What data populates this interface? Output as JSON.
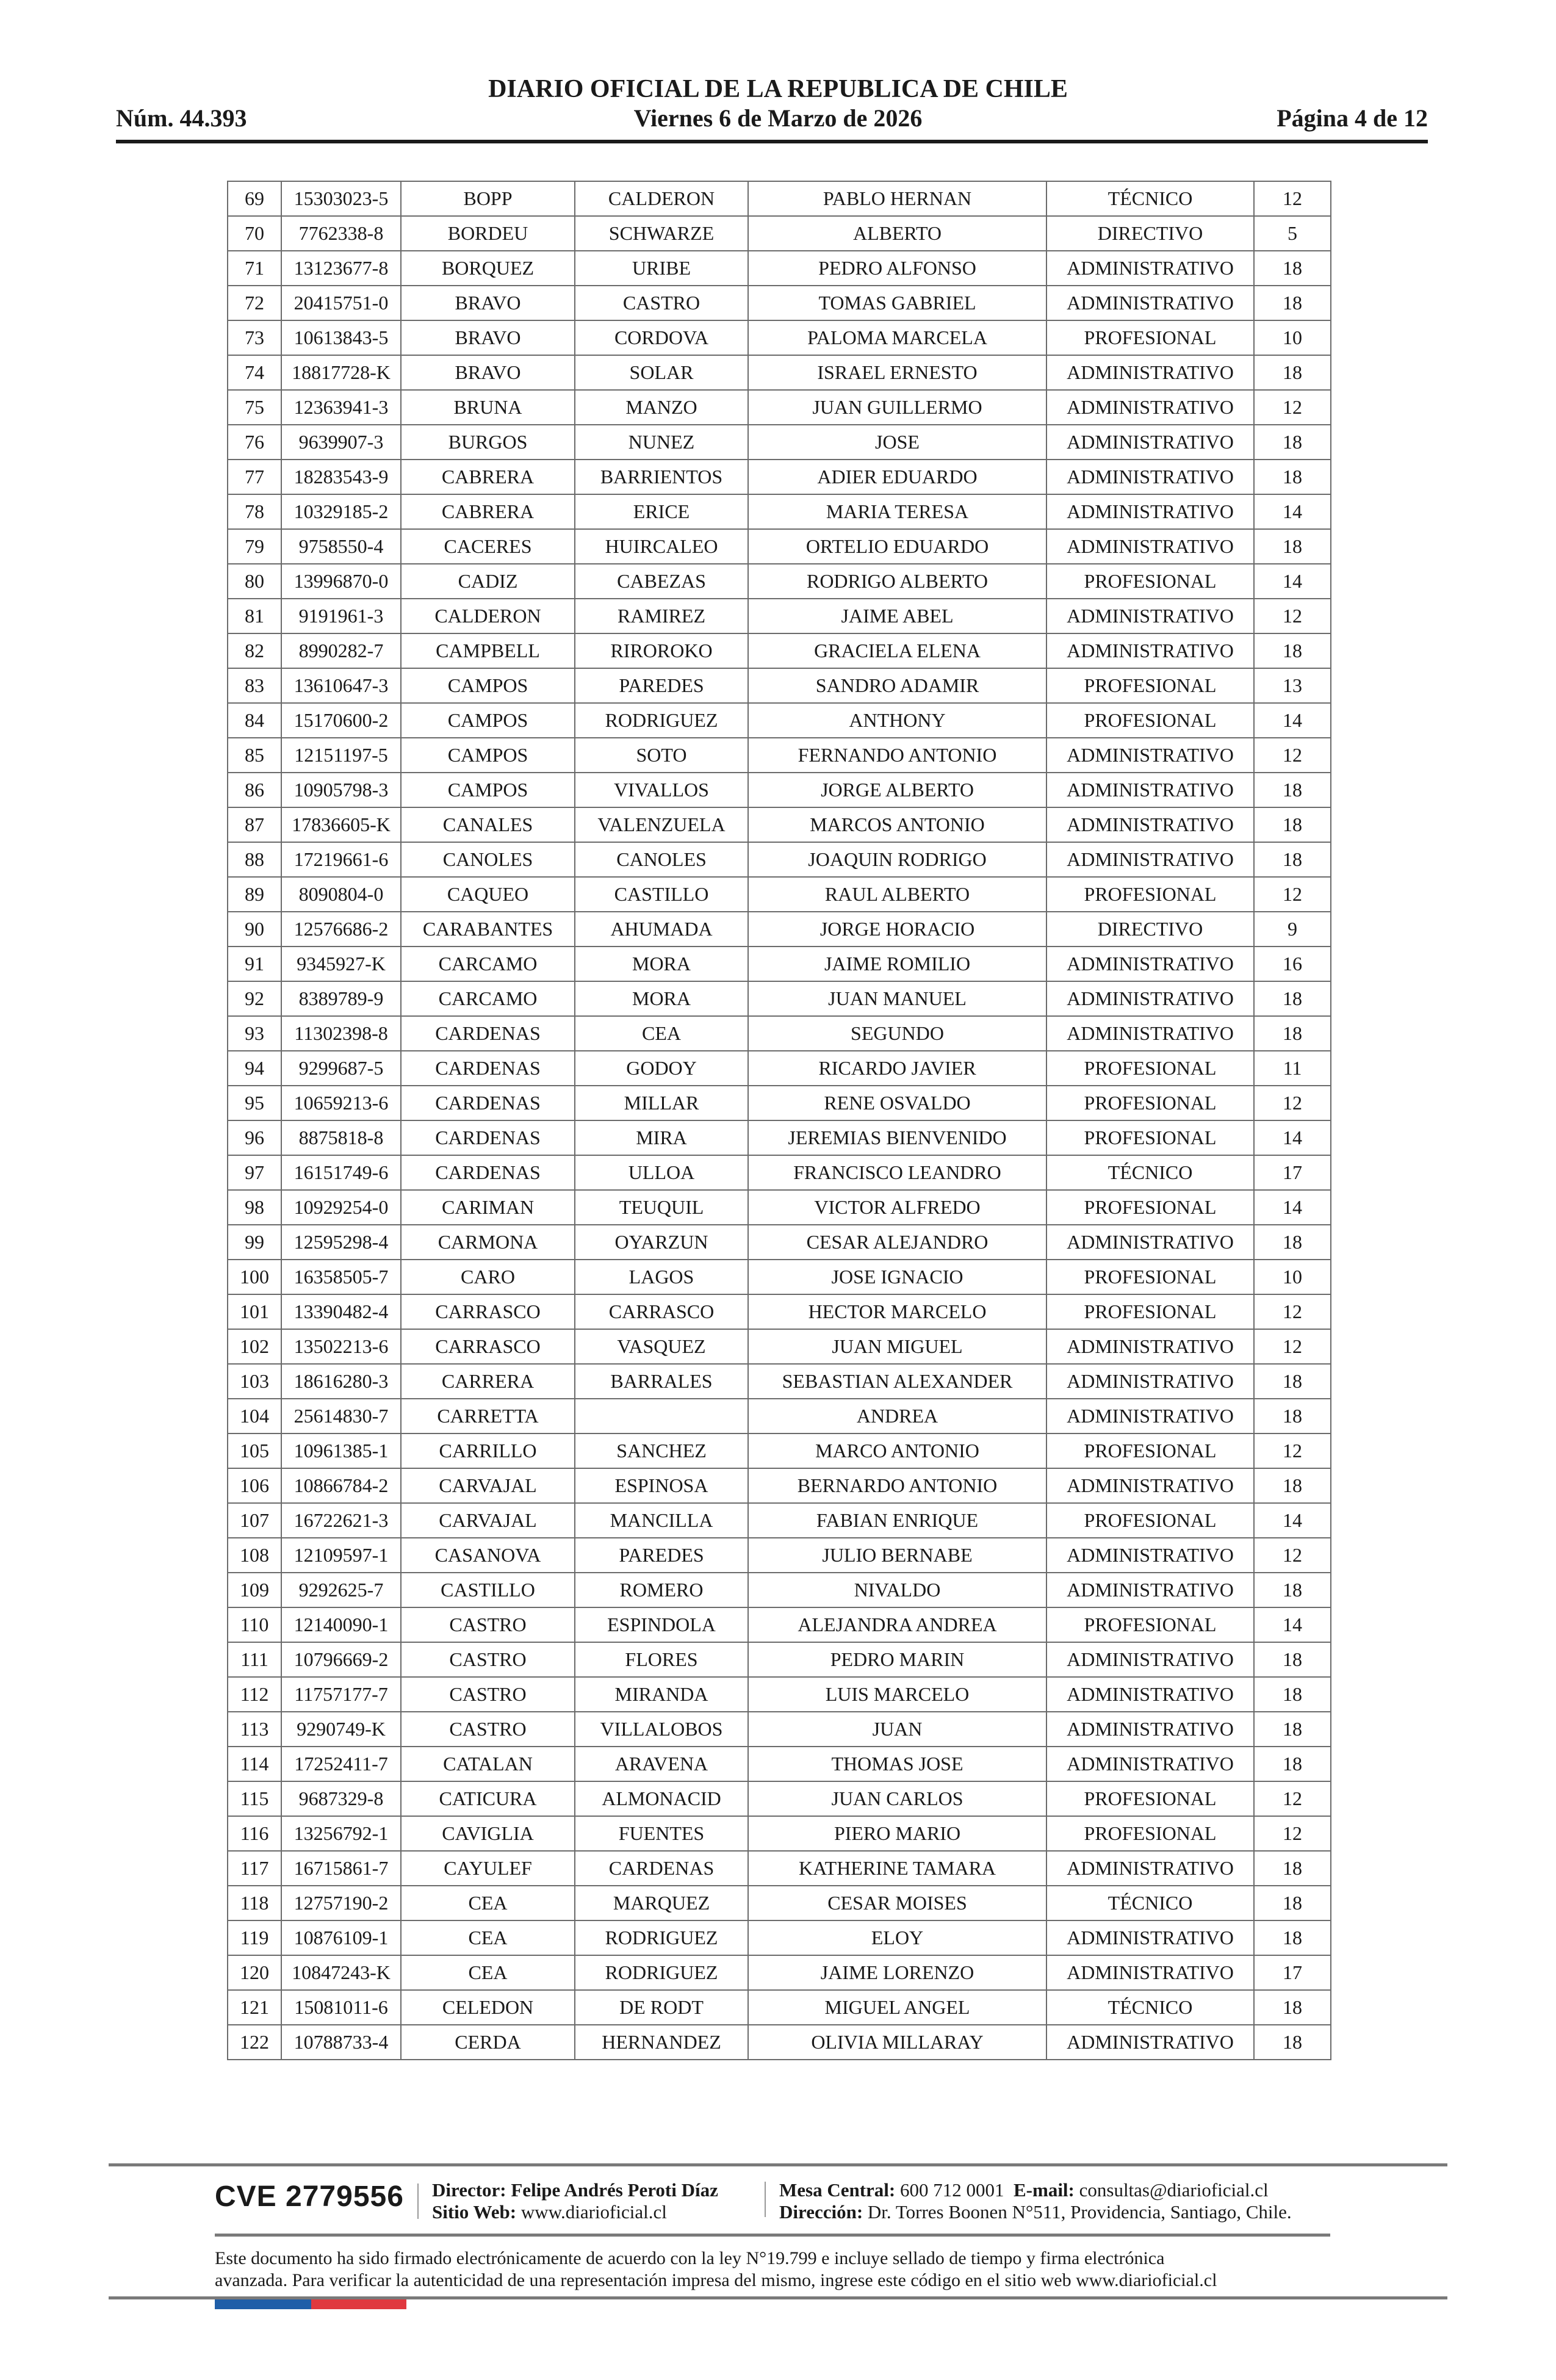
{
  "header": {
    "title": "DIARIO OFICIAL DE LA REPUBLICA DE CHILE",
    "number": "Núm. 44.393",
    "date": "Viernes 6 de Marzo de 2026",
    "page": "Página 4 de 12"
  },
  "table": {
    "rows": [
      [
        "69",
        "15303023-5",
        "BOPP",
        "CALDERON",
        "PABLO HERNAN",
        "TÉCNICO",
        "12"
      ],
      [
        "70",
        "7762338-8",
        "BORDEU",
        "SCHWARZE",
        "ALBERTO",
        "DIRECTIVO",
        "5"
      ],
      [
        "71",
        "13123677-8",
        "BORQUEZ",
        "URIBE",
        "PEDRO ALFONSO",
        "ADMINISTRATIVO",
        "18"
      ],
      [
        "72",
        "20415751-0",
        "BRAVO",
        "CASTRO",
        "TOMAS GABRIEL",
        "ADMINISTRATIVO",
        "18"
      ],
      [
        "73",
        "10613843-5",
        "BRAVO",
        "CORDOVA",
        "PALOMA MARCELA",
        "PROFESIONAL",
        "10"
      ],
      [
        "74",
        "18817728-K",
        "BRAVO",
        "SOLAR",
        "ISRAEL ERNESTO",
        "ADMINISTRATIVO",
        "18"
      ],
      [
        "75",
        "12363941-3",
        "BRUNA",
        "MANZO",
        "JUAN GUILLERMO",
        "ADMINISTRATIVO",
        "12"
      ],
      [
        "76",
        "9639907-3",
        "BURGOS",
        "NUNEZ",
        "JOSE",
        "ADMINISTRATIVO",
        "18"
      ],
      [
        "77",
        "18283543-9",
        "CABRERA",
        "BARRIENTOS",
        "ADIER EDUARDO",
        "ADMINISTRATIVO",
        "18"
      ],
      [
        "78",
        "10329185-2",
        "CABRERA",
        "ERICE",
        "MARIA TERESA",
        "ADMINISTRATIVO",
        "14"
      ],
      [
        "79",
        "9758550-4",
        "CACERES",
        "HUIRCALEO",
        "ORTELIO EDUARDO",
        "ADMINISTRATIVO",
        "18"
      ],
      [
        "80",
        "13996870-0",
        "CADIZ",
        "CABEZAS",
        "RODRIGO ALBERTO",
        "PROFESIONAL",
        "14"
      ],
      [
        "81",
        "9191961-3",
        "CALDERON",
        "RAMIREZ",
        "JAIME ABEL",
        "ADMINISTRATIVO",
        "12"
      ],
      [
        "82",
        "8990282-7",
        "CAMPBELL",
        "RIROROKO",
        "GRACIELA ELENA",
        "ADMINISTRATIVO",
        "18"
      ],
      [
        "83",
        "13610647-3",
        "CAMPOS",
        "PAREDES",
        "SANDRO ADAMIR",
        "PROFESIONAL",
        "13"
      ],
      [
        "84",
        "15170600-2",
        "CAMPOS",
        "RODRIGUEZ",
        "ANTHONY",
        "PROFESIONAL",
        "14"
      ],
      [
        "85",
        "12151197-5",
        "CAMPOS",
        "SOTO",
        "FERNANDO ANTONIO",
        "ADMINISTRATIVO",
        "12"
      ],
      [
        "86",
        "10905798-3",
        "CAMPOS",
        "VIVALLOS",
        "JORGE ALBERTO",
        "ADMINISTRATIVO",
        "18"
      ],
      [
        "87",
        "17836605-K",
        "CANALES",
        "VALENZUELA",
        "MARCOS ANTONIO",
        "ADMINISTRATIVO",
        "18"
      ],
      [
        "88",
        "17219661-6",
        "CANOLES",
        "CANOLES",
        "JOAQUIN RODRIGO",
        "ADMINISTRATIVO",
        "18"
      ],
      [
        "89",
        "8090804-0",
        "CAQUEO",
        "CASTILLO",
        "RAUL ALBERTO",
        "PROFESIONAL",
        "12"
      ],
      [
        "90",
        "12576686-2",
        "CARABANTES",
        "AHUMADA",
        "JORGE HORACIO",
        "DIRECTIVO",
        "9"
      ],
      [
        "91",
        "9345927-K",
        "CARCAMO",
        "MORA",
        "JAIME ROMILIO",
        "ADMINISTRATIVO",
        "16"
      ],
      [
        "92",
        "8389789-9",
        "CARCAMO",
        "MORA",
        "JUAN MANUEL",
        "ADMINISTRATIVO",
        "18"
      ],
      [
        "93",
        "11302398-8",
        "CARDENAS",
        "CEA",
        "SEGUNDO",
        "ADMINISTRATIVO",
        "18"
      ],
      [
        "94",
        "9299687-5",
        "CARDENAS",
        "GODOY",
        "RICARDO JAVIER",
        "PROFESIONAL",
        "11"
      ],
      [
        "95",
        "10659213-6",
        "CARDENAS",
        "MILLAR",
        "RENE OSVALDO",
        "PROFESIONAL",
        "12"
      ],
      [
        "96",
        "8875818-8",
        "CARDENAS",
        "MIRA",
        "JEREMIAS BIENVENIDO",
        "PROFESIONAL",
        "14"
      ],
      [
        "97",
        "16151749-6",
        "CARDENAS",
        "ULLOA",
        "FRANCISCO LEANDRO",
        "TÉCNICO",
        "17"
      ],
      [
        "98",
        "10929254-0",
        "CARIMAN",
        "TEUQUIL",
        "VICTOR ALFREDO",
        "PROFESIONAL",
        "14"
      ],
      [
        "99",
        "12595298-4",
        "CARMONA",
        "OYARZUN",
        "CESAR ALEJANDRO",
        "ADMINISTRATIVO",
        "18"
      ],
      [
        "100",
        "16358505-7",
        "CARO",
        "LAGOS",
        "JOSE IGNACIO",
        "PROFESIONAL",
        "10"
      ],
      [
        "101",
        "13390482-4",
        "CARRASCO",
        "CARRASCO",
        "HECTOR MARCELO",
        "PROFESIONAL",
        "12"
      ],
      [
        "102",
        "13502213-6",
        "CARRASCO",
        "VASQUEZ",
        "JUAN MIGUEL",
        "ADMINISTRATIVO",
        "12"
      ],
      [
        "103",
        "18616280-3",
        "CARRERA",
        "BARRALES",
        "SEBASTIAN ALEXANDER",
        "ADMINISTRATIVO",
        "18"
      ],
      [
        "104",
        "25614830-7",
        "CARRETTA",
        "",
        "ANDREA",
        "ADMINISTRATIVO",
        "18"
      ],
      [
        "105",
        "10961385-1",
        "CARRILLO",
        "SANCHEZ",
        "MARCO ANTONIO",
        "PROFESIONAL",
        "12"
      ],
      [
        "106",
        "10866784-2",
        "CARVAJAL",
        "ESPINOSA",
        "BERNARDO ANTONIO",
        "ADMINISTRATIVO",
        "18"
      ],
      [
        "107",
        "16722621-3",
        "CARVAJAL",
        "MANCILLA",
        "FABIAN ENRIQUE",
        "PROFESIONAL",
        "14"
      ],
      [
        "108",
        "12109597-1",
        "CASANOVA",
        "PAREDES",
        "JULIO BERNABE",
        "ADMINISTRATIVO",
        "12"
      ],
      [
        "109",
        "9292625-7",
        "CASTILLO",
        "ROMERO",
        "NIVALDO",
        "ADMINISTRATIVO",
        "18"
      ],
      [
        "110",
        "12140090-1",
        "CASTRO",
        "ESPINDOLA",
        "ALEJANDRA ANDREA",
        "PROFESIONAL",
        "14"
      ],
      [
        "111",
        "10796669-2",
        "CASTRO",
        "FLORES",
        "PEDRO MARIN",
        "ADMINISTRATIVO",
        "18"
      ],
      [
        "112",
        "11757177-7",
        "CASTRO",
        "MIRANDA",
        "LUIS MARCELO",
        "ADMINISTRATIVO",
        "18"
      ],
      [
        "113",
        "9290749-K",
        "CASTRO",
        "VILLALOBOS",
        "JUAN",
        "ADMINISTRATIVO",
        "18"
      ],
      [
        "114",
        "17252411-7",
        "CATALAN",
        "ARAVENA",
        "THOMAS JOSE",
        "ADMINISTRATIVO",
        "18"
      ],
      [
        "115",
        "9687329-8",
        "CATICURA",
        "ALMONACID",
        "JUAN CARLOS",
        "PROFESIONAL",
        "12"
      ],
      [
        "116",
        "13256792-1",
        "CAVIGLIA",
        "FUENTES",
        "PIERO MARIO",
        "PROFESIONAL",
        "12"
      ],
      [
        "117",
        "16715861-7",
        "CAYULEF",
        "CARDENAS",
        "KATHERINE TAMARA",
        "ADMINISTRATIVO",
        "18"
      ],
      [
        "118",
        "12757190-2",
        "CEA",
        "MARQUEZ",
        "CESAR MOISES",
        "TÉCNICO",
        "18"
      ],
      [
        "119",
        "10876109-1",
        "CEA",
        "RODRIGUEZ",
        "ELOY",
        "ADMINISTRATIVO",
        "18"
      ],
      [
        "120",
        "10847243-K",
        "CEA",
        "RODRIGUEZ",
        "JAIME LORENZO",
        "ADMINISTRATIVO",
        "17"
      ],
      [
        "121",
        "15081011-6",
        "CELEDON",
        "DE RODT",
        "MIGUEL ANGEL",
        "TÉCNICO",
        "18"
      ],
      [
        "122",
        "10788733-4",
        "CERDA",
        "HERNANDEZ",
        "OLIVIA MILLARAY",
        "ADMINISTRATIVO",
        "18"
      ]
    ]
  },
  "footer": {
    "cve": "CVE 2779556",
    "director_label": "Director:",
    "director_name": "Felipe Andrés Peroti Díaz",
    "web_label": "Sitio Web:",
    "web_value": "www.diarioficial.cl",
    "phone_label": "Mesa Central:",
    "phone_value": "600 712 0001",
    "email_label": "E-mail:",
    "email_value": "consultas@diarioficial.cl",
    "address_label": "Dirección:",
    "address_value": "Dr. Torres Boonen N°511, Providencia, Santiago, Chile.",
    "disclaimer_line1": "Este documento ha sido firmado electrónicamente de acuerdo con la ley N°19.799 e incluye sellado de tiempo y firma electrónica",
    "disclaimer_line2": "avanzada. Para verificar la autenticidad de una representación impresa del mismo, ingrese este código en el sitio web www.diarioficial.cl"
  },
  "colors": {
    "flag_blue": "#1f5ea8",
    "flag_red": "#e0383e",
    "rule": "#7a7a7a"
  }
}
